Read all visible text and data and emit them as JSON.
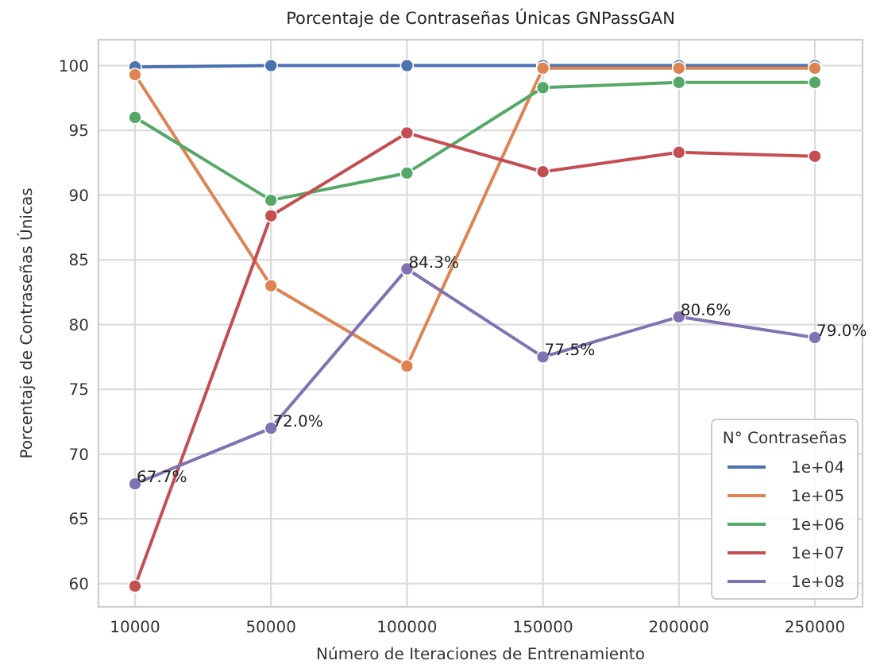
{
  "chart_data": {
    "type": "line",
    "title": "Porcentaje de Contraseñas Únicas GNPassGAN",
    "xlabel": "Número de Iteraciones de Entrenamiento",
    "ylabel": "Porcentaje de Contraseñas Únicas",
    "legend_title": "N° Contraseñas",
    "categories": [
      "10000",
      "50000",
      "100000",
      "150000",
      "200000",
      "250000"
    ],
    "series": [
      {
        "name": "1e+04",
        "color": "#4c72b0",
        "values": [
          99.9,
          100,
          100,
          100,
          100,
          100
        ]
      },
      {
        "name": "1e+05",
        "color": "#dd8452",
        "values": [
          99.3,
          83.0,
          76.8,
          99.8,
          99.8,
          99.8
        ]
      },
      {
        "name": "1e+06",
        "color": "#55a868",
        "values": [
          96.0,
          89.6,
          91.7,
          98.3,
          98.7,
          98.7
        ]
      },
      {
        "name": "1e+07",
        "color": "#c44e52",
        "values": [
          59.8,
          88.4,
          94.8,
          91.8,
          93.3,
          93.0
        ]
      },
      {
        "name": "1e+08",
        "color": "#8172b3",
        "values": [
          67.7,
          72.0,
          84.3,
          77.5,
          80.6,
          79.0
        ],
        "value_labels": [
          "67.7%",
          "72.0%",
          "84.3%",
          "77.5%",
          "80.6%",
          "79.0%"
        ]
      }
    ],
    "ylim": [
      58.2,
      102
    ],
    "yticks": [
      60,
      65,
      70,
      75,
      80,
      85,
      90,
      95,
      100
    ],
    "grid": true,
    "legend": "bottom right",
    "marker": "circle",
    "line_style": "solid"
  }
}
